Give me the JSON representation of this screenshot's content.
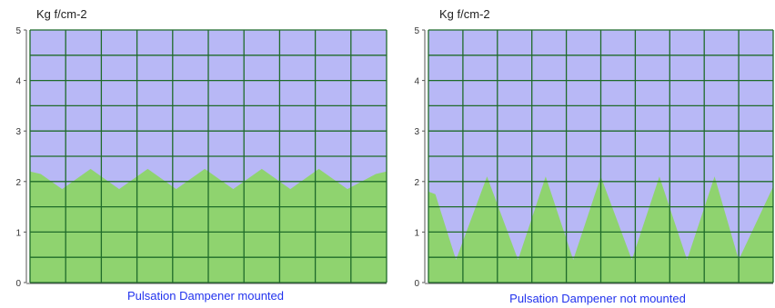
{
  "colors": {
    "plot_background": "#b8b8f6",
    "grid": "#1f6b2a",
    "area_fill": "#8fd36f",
    "caption": "#2233ee"
  },
  "chart_data": [
    {
      "type": "area",
      "title": "Pulsation Dampener mounted",
      "ylabel": "Kg f/cm-2",
      "xlabel": "",
      "ylim": [
        0,
        5
      ],
      "y_ticks": [
        "0",
        "1",
        "2",
        "3",
        "4",
        "5"
      ],
      "grid": true,
      "x": [
        0,
        0.3,
        0.9,
        1.7,
        2.5,
        3.3,
        4.1,
        4.9,
        5.7,
        6.5,
        7.3,
        8.1,
        8.9,
        9.7,
        10.0
      ],
      "y": [
        2.2,
        2.15,
        1.85,
        2.25,
        1.85,
        2.25,
        1.85,
        2.25,
        1.85,
        2.25,
        1.85,
        2.25,
        1.85,
        2.15,
        2.2
      ]
    },
    {
      "type": "area",
      "title": "Pulsation Dampener not mounted",
      "ylabel": "Kg f/cm-2",
      "xlabel": "",
      "ylim": [
        0,
        5
      ],
      "y_ticks": [
        "0",
        "1",
        "2",
        "3",
        "4",
        "5"
      ],
      "grid": true,
      "x": [
        0,
        0.2,
        0.8,
        1.7,
        2.6,
        3.4,
        4.2,
        5.0,
        5.9,
        6.7,
        7.5,
        8.3,
        9.0,
        10.0
      ],
      "y": [
        1.8,
        1.75,
        0.45,
        2.1,
        0.45,
        2.1,
        0.45,
        2.1,
        0.45,
        2.1,
        0.45,
        2.1,
        0.45,
        1.9
      ]
    }
  ]
}
